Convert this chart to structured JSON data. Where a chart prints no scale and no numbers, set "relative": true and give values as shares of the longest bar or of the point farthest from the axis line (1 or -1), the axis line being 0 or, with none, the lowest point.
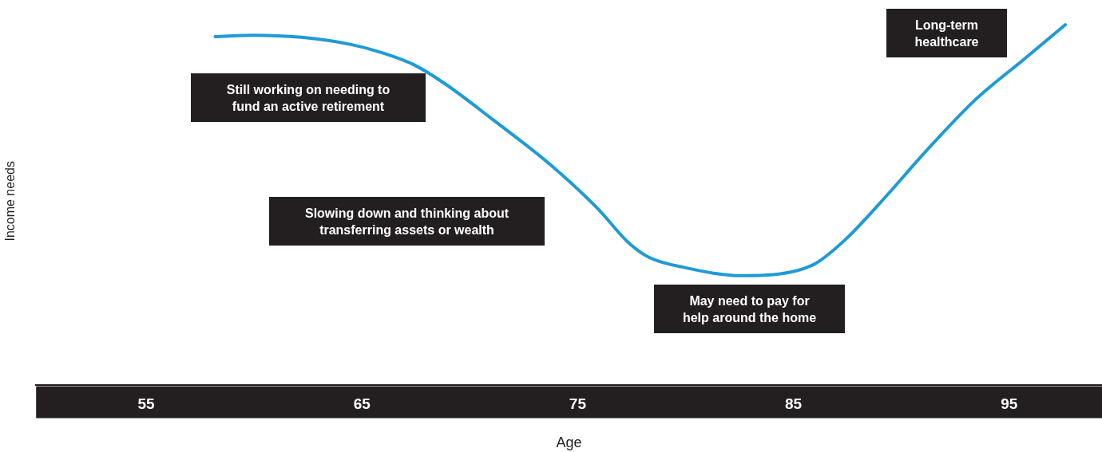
{
  "chart_data": {
    "type": "line",
    "relative": true,
    "xlabel": "Age",
    "ylabel": "Income needs",
    "x": [
      58.2,
      60.0,
      62.2,
      64.5,
      65.9,
      67.4,
      68.9,
      71.1,
      73.7,
      75.9,
      77.4,
      78.3,
      80.0,
      82.6,
      84.4,
      86.0,
      87.4,
      89.3,
      91.1,
      93.4,
      95.6,
      97.6
    ],
    "series": [
      {
        "color": "#1e9bd7",
        "values": [
          0.967,
          0.971,
          0.965,
          0.945,
          0.923,
          0.889,
          0.834,
          0.735,
          0.613,
          0.491,
          0.392,
          0.354,
          0.325,
          0.303,
          0.308,
          0.336,
          0.403,
          0.524,
          0.646,
          0.79,
          0.9,
          1
        ]
      }
    ],
    "xlim": [
      49.9,
      99.3
    ],
    "xticks": [
      55,
      65,
      75,
      85,
      95
    ],
    "grid": false,
    "legend": false,
    "marker": "none",
    "line_style": "solid",
    "annotations": [
      "Still working on needing to fund an active retirement",
      "Slowing down and thinking about transferring assets or wealth",
      "May need to pay for help around the home",
      "Long-term healthcare"
    ]
  }
}
